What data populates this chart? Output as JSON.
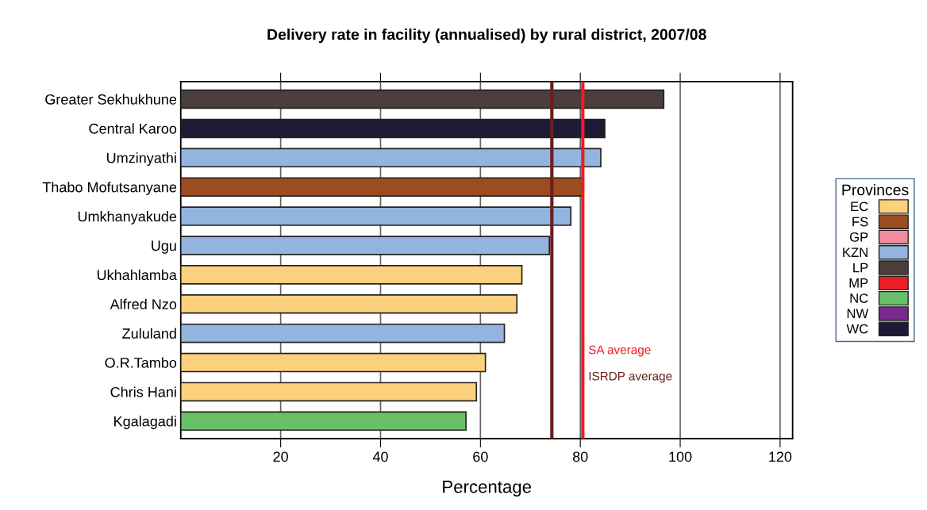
{
  "chart_data": {
    "type": "bar",
    "orientation": "horizontal",
    "title": "Delivery rate in facility (annualised) by rural district, 2007/08",
    "xlabel": "Percentage",
    "categories": [
      "Greater Sekhukhune",
      "Central Karoo",
      "Umzinyathi",
      "Thabo Mofutsanyane",
      "Umkhanyakude",
      "Ugu",
      "Ukhahlamba",
      "Alfred Nzo",
      "Zululand",
      "O.R.Tambo",
      "Chris Hani",
      "Kgalagadi"
    ],
    "series": [
      {
        "name": "EC",
        "color": "#fdd07d",
        "values": [
          null,
          null,
          null,
          null,
          null,
          null,
          68.3,
          67.3,
          null,
          61.0,
          59.2,
          null
        ]
      },
      {
        "name": "FS",
        "color": "#9c4d20",
        "values": [
          null,
          null,
          null,
          80.5,
          null,
          null,
          null,
          null,
          null,
          null,
          null,
          null
        ]
      },
      {
        "name": "GP",
        "color": "#f08ba0",
        "values": [
          null,
          null,
          null,
          null,
          null,
          null,
          null,
          null,
          null,
          null,
          null,
          null
        ]
      },
      {
        "name": "KZN",
        "color": "#93b4de",
        "values": [
          null,
          null,
          84.1,
          null,
          78.1,
          73.8,
          null,
          null,
          64.8,
          null,
          null,
          null
        ]
      },
      {
        "name": "LP",
        "color": "#4a3f3c",
        "values": [
          96.7,
          null,
          null,
          null,
          null,
          null,
          null,
          null,
          null,
          null,
          null,
          null
        ]
      },
      {
        "name": "MP",
        "color": "#ee1c24",
        "values": [
          null,
          null,
          null,
          null,
          null,
          null,
          null,
          null,
          null,
          null,
          null,
          null
        ]
      },
      {
        "name": "NC",
        "color": "#6abf69",
        "values": [
          null,
          null,
          null,
          null,
          null,
          null,
          null,
          null,
          null,
          null,
          null,
          57.1
        ]
      },
      {
        "name": "NW",
        "color": "#7a2a8f",
        "values": [
          null,
          null,
          null,
          null,
          null,
          null,
          null,
          null,
          null,
          null,
          null,
          null
        ]
      },
      {
        "name": "WC",
        "color": "#1e1a35",
        "values": [
          null,
          84.9,
          null,
          null,
          null,
          null,
          null,
          null,
          null,
          null,
          null,
          null
        ]
      }
    ],
    "xlim": [
      0,
      122.5
    ],
    "xticks": [
      20,
      40,
      60,
      80,
      100,
      120
    ],
    "grid": "x",
    "ref_lines": [
      {
        "axis": "x",
        "value": 74.3,
        "label": "ISRDP average",
        "color": "#6b1f1f"
      },
      {
        "axis": "x",
        "value": 80.5,
        "label": "SA average",
        "color": "#ee1c24"
      }
    ],
    "legend": "right",
    "legend_title": "Provinces"
  }
}
